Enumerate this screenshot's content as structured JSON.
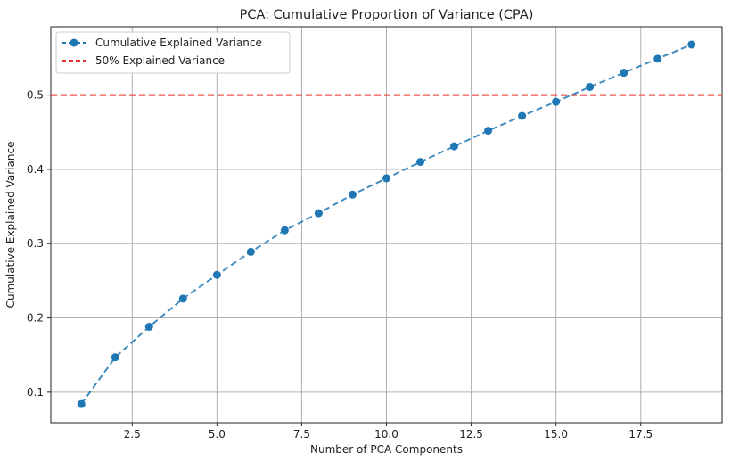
{
  "chart_data": {
    "type": "line",
    "title": "PCA: Cumulative Proportion of Variance (CPA)",
    "xlabel": "Number of PCA Components",
    "ylabel": "Cumulative Explained Variance",
    "xlim": [
      0.1,
      19.9
    ],
    "ylim": [
      0.059,
      0.592
    ],
    "x_ticks": [
      2.5,
      5.0,
      7.5,
      10.0,
      12.5,
      15.0,
      17.5
    ],
    "x_tick_labels": [
      "2.5",
      "5.0",
      "7.5",
      "10.0",
      "12.5",
      "15.0",
      "17.5"
    ],
    "y_ticks": [
      0.1,
      0.2,
      0.3,
      0.4,
      0.5
    ],
    "y_tick_labels": [
      "0.1",
      "0.2",
      "0.3",
      "0.4",
      "0.5"
    ],
    "grid": true,
    "legend_position": "top-left",
    "series": [
      {
        "name": "Cumulative Explained Variance",
        "color": "#1f77b4",
        "style": "dashed-with-circle-markers",
        "x": [
          1,
          2,
          3,
          4,
          5,
          6,
          7,
          8,
          9,
          10,
          11,
          12,
          13,
          14,
          15,
          16,
          17,
          18,
          19
        ],
        "y": [
          0.084,
          0.147,
          0.188,
          0.226,
          0.258,
          0.289,
          0.318,
          0.341,
          0.366,
          0.388,
          0.41,
          0.431,
          0.452,
          0.472,
          0.491,
          0.511,
          0.53,
          0.549,
          0.568
        ]
      }
    ],
    "reference_lines": [
      {
        "name": "50% Explained Variance",
        "orientation": "horizontal",
        "y": 0.5,
        "color": "#e8302a",
        "style": "dashed"
      }
    ]
  }
}
